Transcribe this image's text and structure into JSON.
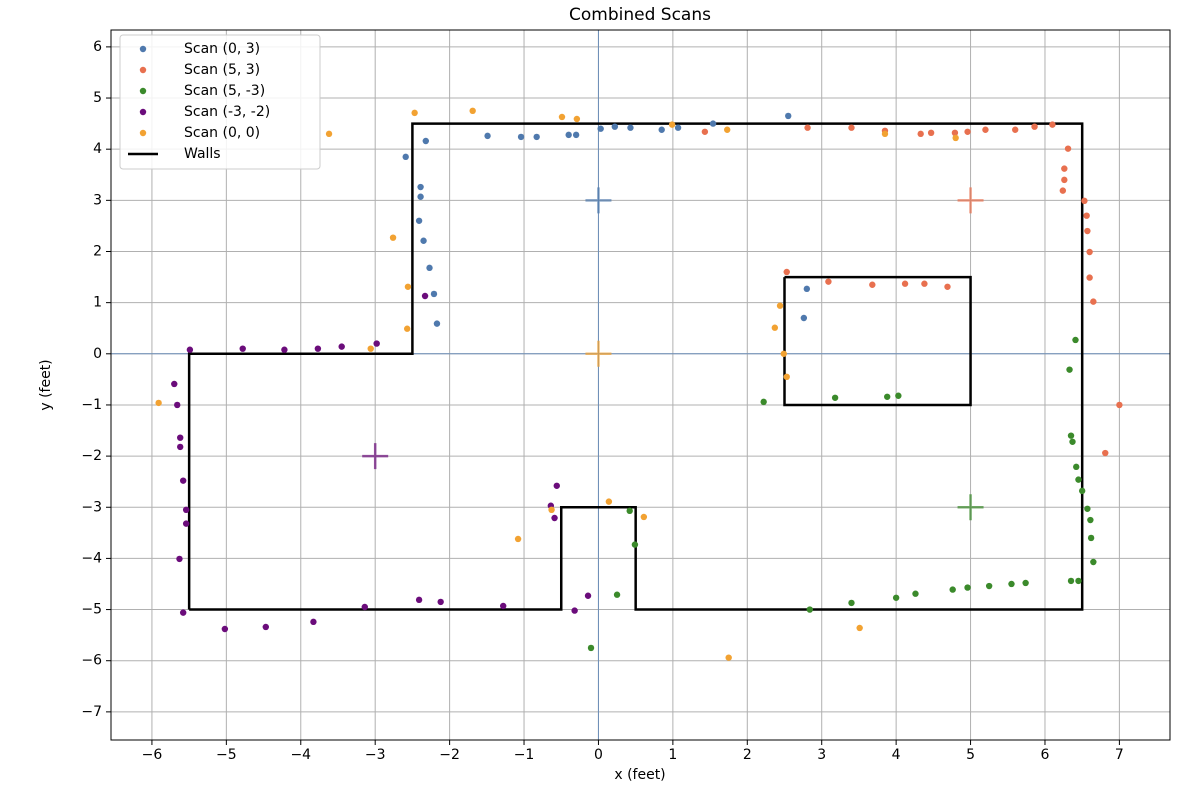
{
  "chart_data": {
    "type": "scatter",
    "title": "Combined Scans",
    "x_label": "x (feet)",
    "y_label": "y (feet)",
    "xlim": [
      -6.55,
      7.68
    ],
    "ylim": [
      -7.55,
      6.33
    ],
    "xticks": [
      {
        "value": -6,
        "label": "−6"
      },
      {
        "value": -5,
        "label": "−5"
      },
      {
        "value": -4,
        "label": "−4"
      },
      {
        "value": -3,
        "label": "−3"
      },
      {
        "value": -2,
        "label": "−2"
      },
      {
        "value": -1,
        "label": "−1"
      },
      0,
      1,
      2,
      3,
      4,
      5,
      6,
      7
    ],
    "yticks": [
      {
        "value": -7,
        "label": "−7"
      },
      {
        "value": -6,
        "label": "−6"
      },
      {
        "value": -5,
        "label": "−5"
      },
      {
        "value": -4,
        "label": "−4"
      },
      {
        "value": -3,
        "label": "−3"
      },
      {
        "value": -2,
        "label": "−2"
      },
      {
        "value": -1,
        "label": "−1"
      },
      0,
      1,
      2,
      3,
      4,
      5,
      6
    ],
    "grid": true,
    "legend": "upper left",
    "reference_lines": {
      "x": 0,
      "y": 0
    },
    "series": [
      {
        "name": "Scan (0, 3)",
        "type": "scatter",
        "color": "#4f79ad",
        "origin": [
          0,
          3
        ],
        "x": [
          2.55,
          1.54,
          1.07,
          0.85,
          0.43,
          0.22,
          0.03,
          -0.3,
          -0.4,
          -0.83,
          -1.04,
          -1.49,
          -2.32,
          -2.59,
          -2.39,
          -2.39,
          -2.41,
          -2.35,
          -2.27,
          -2.21,
          -2.17,
          2.8,
          2.76
        ],
        "y": [
          4.65,
          4.5,
          4.42,
          4.38,
          4.42,
          4.44,
          4.4,
          4.28,
          4.28,
          4.24,
          4.24,
          4.26,
          4.16,
          3.85,
          3.26,
          3.07,
          2.6,
          2.21,
          1.68,
          1.17,
          0.59,
          1.27,
          0.7
        ]
      },
      {
        "name": "Scan (5, 3)",
        "type": "scatter",
        "color": "#e8704f",
        "origin": [
          5,
          3
        ],
        "x": [
          6.1,
          5.86,
          5.6,
          5.2,
          4.96,
          4.79,
          4.47,
          4.33,
          3.85,
          3.4,
          2.81,
          1.43,
          6.31,
          6.26,
          6.26,
          6.24,
          6.53,
          6.56,
          6.57,
          6.6,
          6.6,
          6.65,
          7.0,
          6.81,
          2.53,
          3.09,
          3.68,
          4.12,
          4.38,
          4.69
        ],
        "y": [
          4.48,
          4.44,
          4.38,
          4.38,
          4.34,
          4.32,
          4.32,
          4.3,
          4.36,
          4.42,
          4.42,
          4.34,
          4.01,
          3.62,
          3.4,
          3.19,
          2.99,
          2.7,
          2.4,
          1.99,
          1.49,
          1.02,
          -1.0,
          -1.94,
          1.6,
          1.41,
          1.35,
          1.37,
          1.37,
          1.31
        ]
      },
      {
        "name": "Scan (5, -3)",
        "type": "scatter",
        "color": "#3b8a2b",
        "origin": [
          5,
          -3
        ],
        "x": [
          6.41,
          6.33,
          6.35,
          6.37,
          6.42,
          6.45,
          6.5,
          6.57,
          6.61,
          6.62,
          6.65,
          6.45,
          6.35,
          5.74,
          5.55,
          5.25,
          4.96,
          4.76,
          4.26,
          4.0,
          3.4,
          2.84,
          2.22,
          3.18,
          3.88,
          4.03,
          0.42,
          0.49,
          0.25,
          -0.1
        ],
        "y": [
          0.27,
          -0.31,
          -1.6,
          -1.72,
          -2.21,
          -2.46,
          -2.68,
          -3.03,
          -3.25,
          -3.6,
          -4.07,
          -4.44,
          -4.44,
          -4.48,
          -4.5,
          -4.54,
          -4.57,
          -4.61,
          -4.69,
          -4.77,
          -4.87,
          -5.0,
          -0.94,
          -0.86,
          -0.84,
          -0.82,
          -3.07,
          -3.73,
          -4.71,
          -5.75
        ]
      },
      {
        "name": "Scan (-3, -2)",
        "type": "scatter",
        "color": "#6b0c7b",
        "origin": [
          -3,
          -2
        ],
        "x": [
          -5.49,
          -4.78,
          -4.22,
          -3.77,
          -3.45,
          -2.98,
          -2.33,
          -5.7,
          -5.66,
          -5.62,
          -5.62,
          -5.58,
          -5.54,
          -5.54,
          -5.63,
          -5.58,
          -5.02,
          -4.47,
          -3.83,
          -3.14,
          -2.41,
          -2.12,
          -1.28,
          -0.56,
          -0.64,
          -0.59,
          -0.14,
          -0.32
        ],
        "y": [
          0.08,
          0.1,
          0.08,
          0.1,
          0.14,
          0.2,
          1.13,
          -0.59,
          -1.0,
          -1.64,
          -1.82,
          -2.48,
          -3.05,
          -3.32,
          -4.01,
          -5.06,
          -5.38,
          -5.34,
          -5.24,
          -4.95,
          -4.81,
          -4.85,
          -4.93,
          -2.58,
          -2.97,
          -3.21,
          -4.73,
          -5.02
        ]
      },
      {
        "name": "Scan (0, 0)",
        "type": "scatter",
        "color": "#f2a232",
        "origin": [
          0,
          0
        ],
        "x": [
          -5.91,
          -3.62,
          -2.47,
          -1.69,
          -0.49,
          -0.29,
          0.99,
          1.73,
          3.85,
          4.8,
          -2.76,
          -2.56,
          -2.57,
          -3.06,
          2.44,
          2.37,
          2.49,
          2.53,
          0.14,
          0.61,
          -1.08,
          -0.63,
          3.51,
          1.75
        ],
        "y": [
          -0.96,
          4.3,
          4.71,
          4.75,
          4.63,
          4.59,
          4.48,
          4.38,
          4.3,
          4.22,
          2.27,
          1.31,
          0.49,
          0.1,
          0.94,
          0.51,
          0.0,
          -0.45,
          -2.89,
          -3.19,
          -3.62,
          -3.05,
          -5.36,
          -5.94
        ]
      },
      {
        "name": "Walls",
        "type": "line",
        "color": "#000000",
        "x": [
          -5.5,
          -5.5,
          -2.5,
          -2.5,
          6.5,
          6.5,
          0.5,
          0.5,
          -0.5,
          -0.5,
          -5.5,
          null,
          2.5,
          5,
          5,
          2.5,
          2.5
        ],
        "y": [
          -5,
          0,
          0,
          4.5,
          4.5,
          -5,
          -5,
          -3,
          -3,
          -5,
          -5,
          null,
          1.5,
          1.5,
          -1,
          -1,
          1.5
        ]
      }
    ]
  }
}
